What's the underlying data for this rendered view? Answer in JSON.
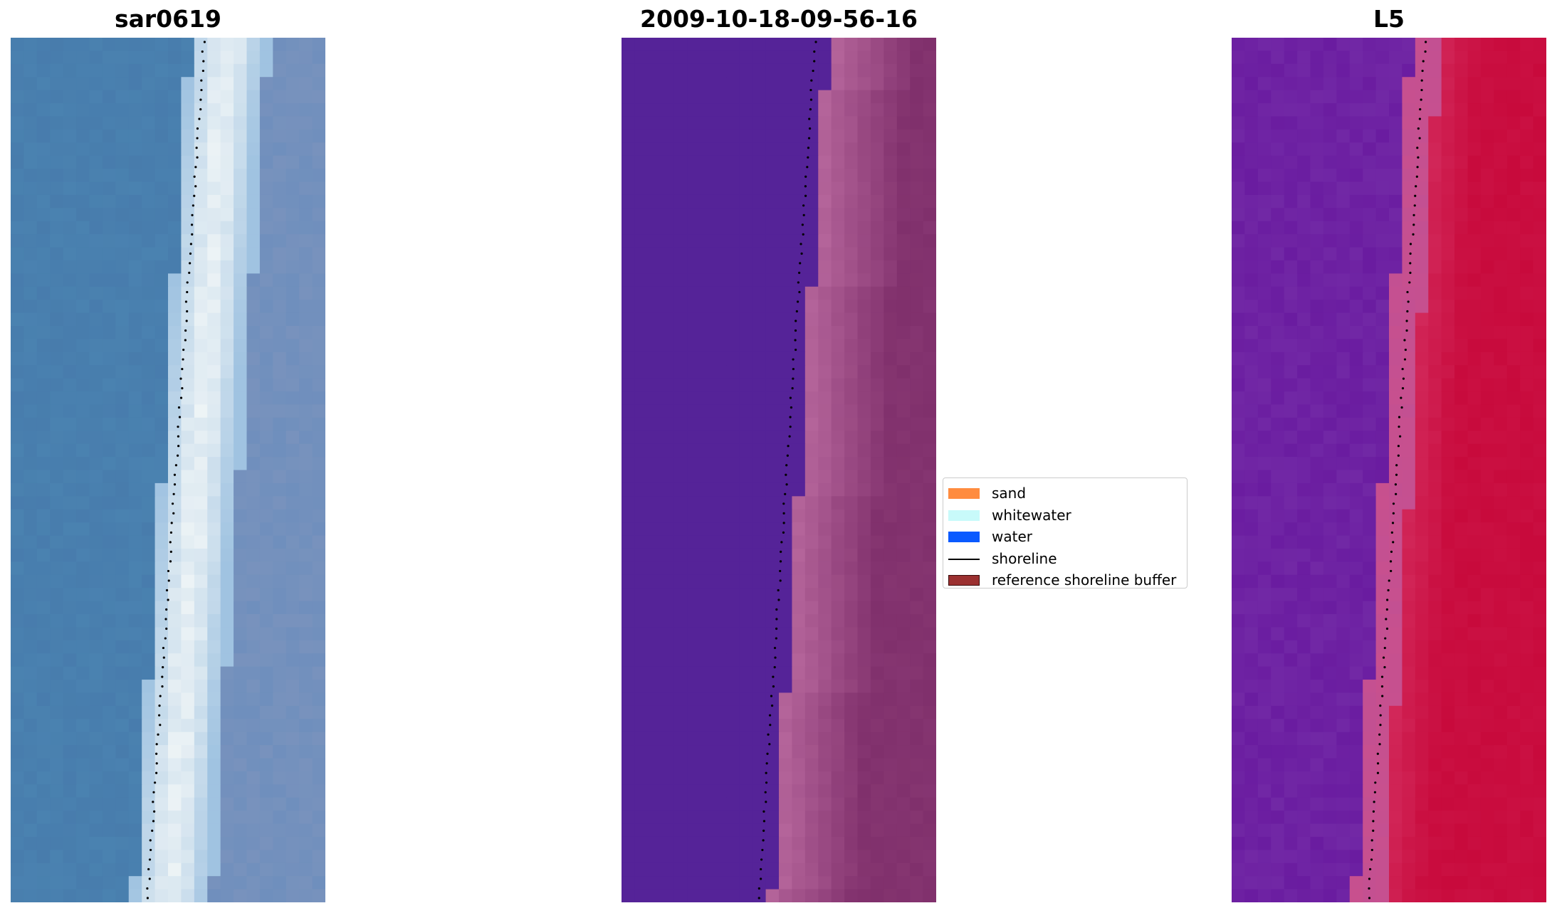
{
  "panels": {
    "rgb": {
      "title": "sar0619"
    },
    "classified": {
      "title": "2009-10-18-09-56-16"
    },
    "index": {
      "title": "L5"
    }
  },
  "legend": {
    "items": [
      {
        "label": "sand",
        "color": "#ff8c3f",
        "kind": "patch"
      },
      {
        "label": "whitewater",
        "color": "#c8fafa",
        "kind": "patch"
      },
      {
        "label": "water",
        "color": "#0a5aff",
        "kind": "patch"
      },
      {
        "label": "shoreline",
        "color": "#000000",
        "kind": "line"
      },
      {
        "label": "reference shoreline buffer",
        "color": "#9b3030",
        "kind": "patch-outlined"
      }
    ]
  },
  "colors": {
    "rgb_water": "#4a82b0",
    "rgb_whitewater": "#eef4f6",
    "rgb_land": "#6f8fbd",
    "classified_water": "#552398",
    "classified_buffer": "#b4649a",
    "classified_land": "#80306c",
    "index_water": "#6a1ca0",
    "index_buffer": "#c8508e",
    "index_land": "#c80a3c",
    "shoreline": "#000000"
  }
}
